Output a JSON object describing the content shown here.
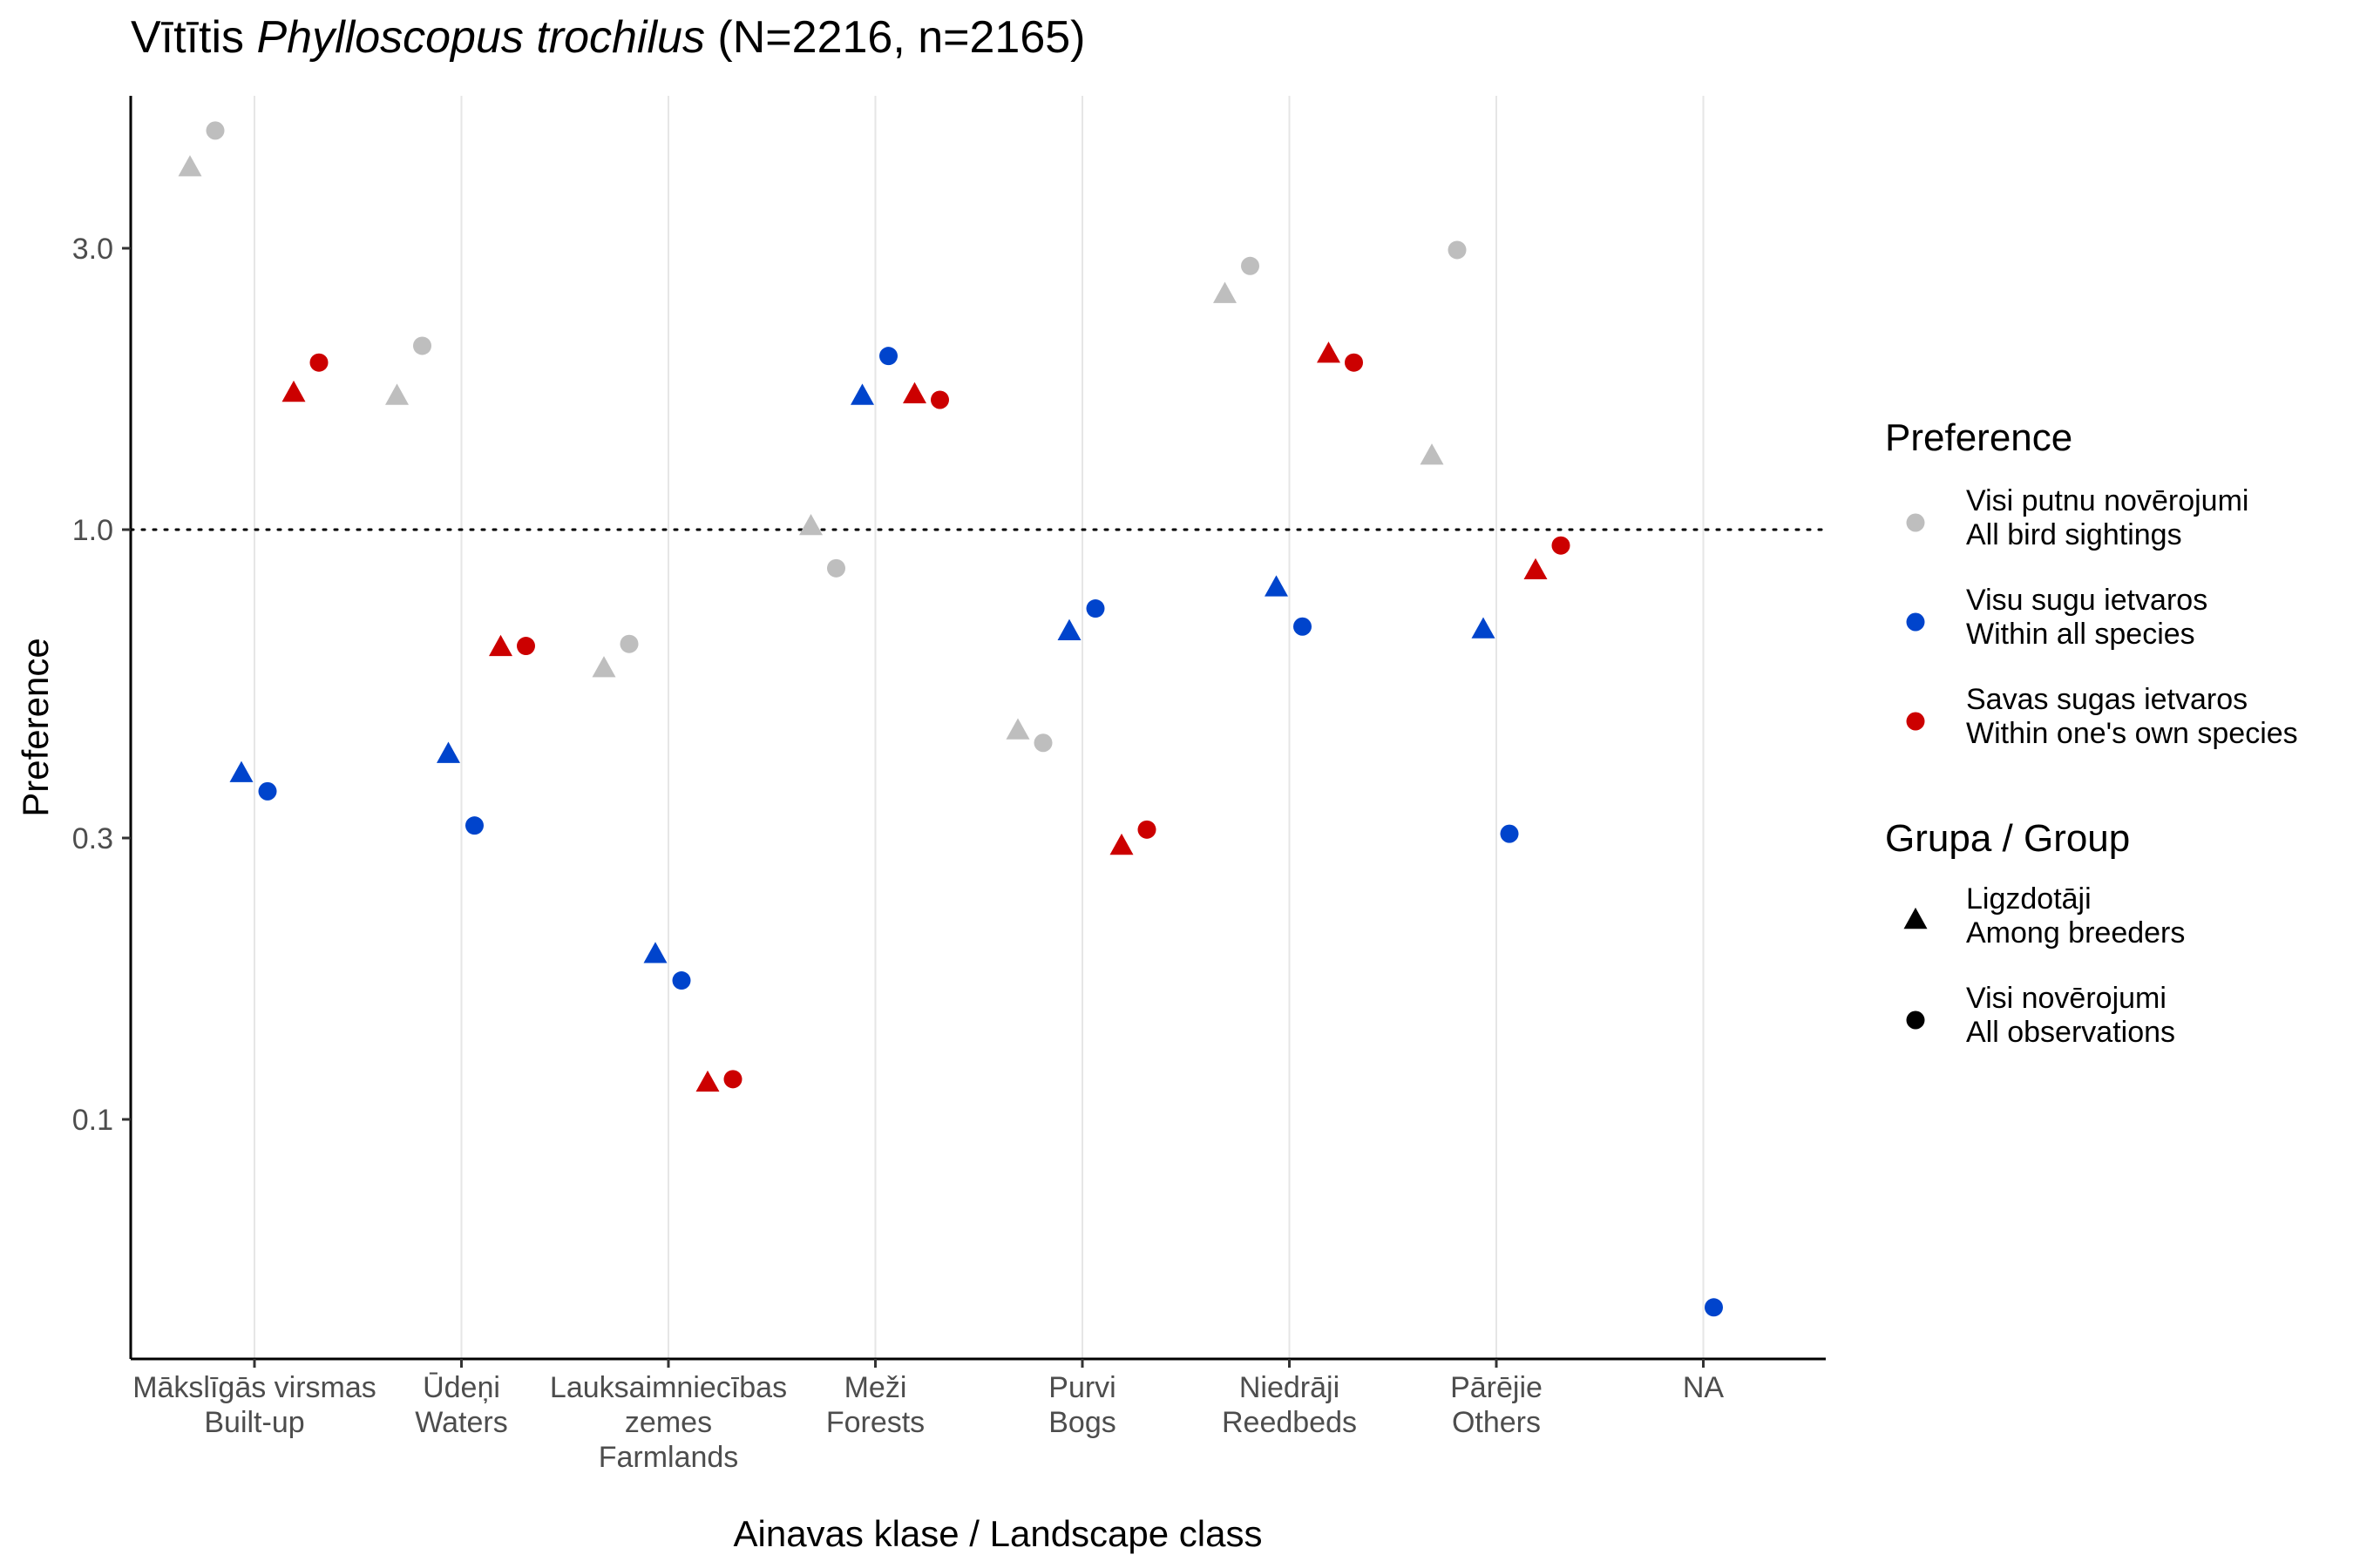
{
  "chart_data": {
    "type": "scatter",
    "title": {
      "common_name": "Vītītis",
      "scientific_name": "Phylloscopus trochilus",
      "counts": "(N=2216, n=2165)"
    },
    "xlabel": "Ainavas klase / Landscape class",
    "ylabel": "Preference",
    "y_scale": "log",
    "ylim": [
      0.04,
      5.5
    ],
    "y_ticks": [
      "0.1",
      "0.3",
      "1.0",
      "3.0"
    ],
    "y_tick_values": [
      0.1,
      0.3,
      1.0,
      3.0
    ],
    "reference_line": 1.0,
    "grid": "vertical major lines only",
    "categories": [
      {
        "lv": "Mākslīgās virsmas",
        "en": "Built-up"
      },
      {
        "lv": "Ūdeņi",
        "en": "Waters"
      },
      {
        "lv": "Lauksaimniecības",
        "lv2": "zemes",
        "en": "Farmlands"
      },
      {
        "lv": "Meži",
        "en": "Forests"
      },
      {
        "lv": "Purvi",
        "en": "Bogs"
      },
      {
        "lv": "Niedrāji",
        "en": "Reedbeds"
      },
      {
        "lv": "Pārējie",
        "en": "Others"
      },
      {
        "lv": "NA",
        "en": ""
      }
    ],
    "series": [
      {
        "preference": "all_sightings",
        "group": "breeders",
        "color": "#bebebe",
        "shape": "triangle",
        "values": [
          4.1,
          1.68,
          0.58,
          1.01,
          0.455,
          2.5,
          1.33,
          null
        ]
      },
      {
        "preference": "all_sightings",
        "group": "all_obs",
        "color": "#bebebe",
        "shape": "circle",
        "values": [
          4.75,
          2.05,
          0.64,
          0.86,
          0.435,
          2.8,
          2.98,
          null
        ]
      },
      {
        "preference": "all_species",
        "group": "breeders",
        "color": "#0044cc",
        "shape": "triangle",
        "values": [
          0.385,
          0.415,
          0.19,
          1.68,
          0.67,
          0.795,
          0.675,
          null
        ]
      },
      {
        "preference": "all_species",
        "group": "all_obs",
        "color": "#0044cc",
        "shape": "circle",
        "values": [
          0.36,
          0.315,
          0.172,
          1.97,
          0.735,
          0.685,
          0.305,
          0.048
        ]
      },
      {
        "preference": "own_species",
        "group": "breeders",
        "color": "#cc0000",
        "shape": "triangle",
        "values": [
          1.7,
          0.63,
          0.115,
          1.69,
          0.29,
          1.98,
          0.85,
          null
        ]
      },
      {
        "preference": "own_species",
        "group": "all_obs",
        "color": "#cc0000",
        "shape": "circle",
        "values": [
          1.92,
          0.635,
          0.117,
          1.66,
          0.31,
          1.92,
          0.94,
          null
        ]
      }
    ],
    "legend": {
      "placement": "right",
      "preference_title": "Preference",
      "preference_items": [
        {
          "key": "all_sightings",
          "color": "#bebebe",
          "line1": "Visi putnu novērojumi",
          "line2": "All bird sightings"
        },
        {
          "key": "all_species",
          "color": "#0044cc",
          "line1": "Visu sugu ietvaros",
          "line2": "Within all species"
        },
        {
          "key": "own_species",
          "color": "#cc0000",
          "line1": "Savas sugas ietvaros",
          "line2": "Within one's own species"
        }
      ],
      "group_title": "Grupa / Group",
      "group_items": [
        {
          "key": "breeders",
          "shape": "triangle",
          "line1": "Ligzdotāji",
          "line2": "Among breeders"
        },
        {
          "key": "all_obs",
          "shape": "circle",
          "line1": "Visi novērojumi",
          "line2": "All observations"
        }
      ]
    }
  }
}
